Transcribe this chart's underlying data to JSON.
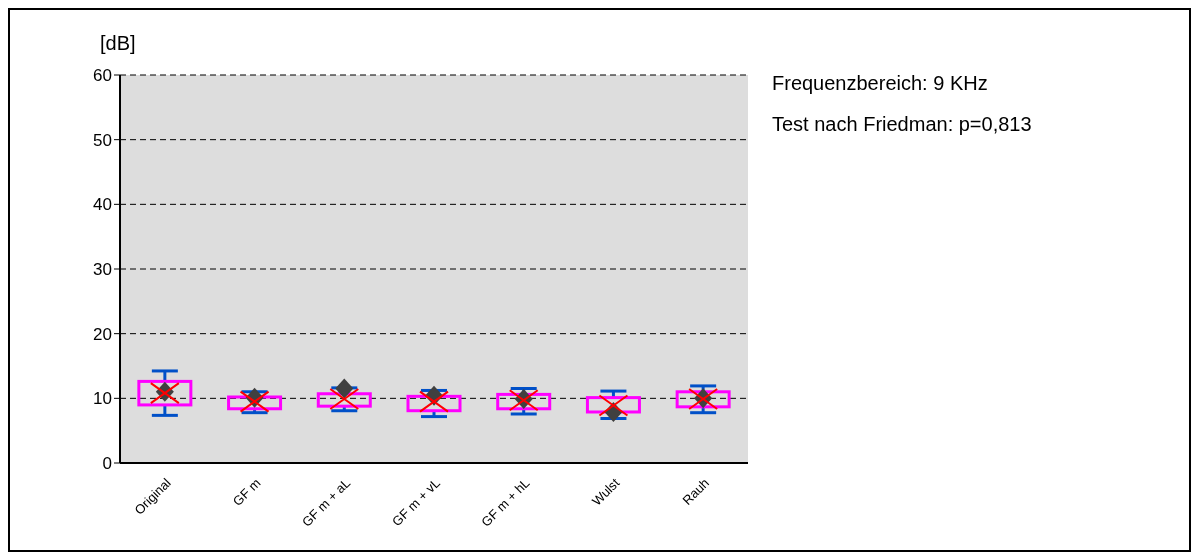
{
  "chart_data": {
    "type": "box",
    "ylabel": "[dB]",
    "categories": [
      "Original",
      "GF m",
      "GF m + aL",
      "GF m + vL",
      "GF m + hL",
      "Wulst",
      "Rauh"
    ],
    "boxes": [
      {
        "low": 7.4,
        "q1": 9.0,
        "median": 10.8,
        "q3": 12.6,
        "high": 14.2,
        "mean": 11.0
      },
      {
        "low": 7.8,
        "q1": 8.4,
        "median": 9.5,
        "q3": 10.2,
        "high": 11.0,
        "mean": 10.1
      },
      {
        "low": 8.1,
        "q1": 8.8,
        "median": 9.9,
        "q3": 10.7,
        "high": 11.6,
        "mean": 11.5
      },
      {
        "low": 7.2,
        "q1": 8.1,
        "median": 9.5,
        "q3": 10.3,
        "high": 11.2,
        "mean": 10.4
      },
      {
        "low": 7.6,
        "q1": 8.4,
        "median": 9.7,
        "q3": 10.6,
        "high": 11.5,
        "mean": 9.9
      },
      {
        "low": 6.9,
        "q1": 7.9,
        "median": 8.9,
        "q3": 10.1,
        "high": 11.1,
        "mean": 7.9
      },
      {
        "low": 7.8,
        "q1": 8.7,
        "median": 9.9,
        "q3": 11.0,
        "high": 11.9,
        "mean": 10.0
      }
    ],
    "ylim": [
      0,
      60
    ],
    "yticks": [
      0,
      10,
      20,
      30,
      40,
      50,
      60
    ],
    "grid": "y",
    "annotations": [
      "Frequenzbereich:  9 KHz",
      "Test nach Friedman: p=0,813"
    ]
  }
}
